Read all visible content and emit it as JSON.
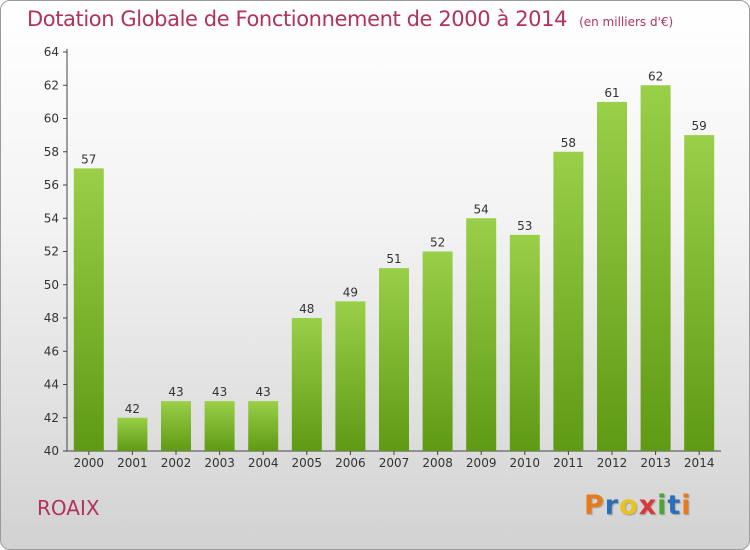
{
  "header": {
    "title": "Dotation Globale de Fonctionnement de 2000 à 2014",
    "unit": "(en milliers d'€)"
  },
  "footer": {
    "commune": "ROAIX",
    "brand": "Proxiti"
  },
  "brand_letters": [
    {
      "ch": "P",
      "color": "#e87a1e"
    },
    {
      "ch": "r",
      "color": "#2a6fb8"
    },
    {
      "ch": "o",
      "color": "#e8c21e"
    },
    {
      "ch": "x",
      "color": "#d63a3a"
    },
    {
      "ch": "i",
      "color": "#4aa532"
    },
    {
      "ch": "t",
      "color": "#2a6fb8"
    },
    {
      "ch": "i",
      "color": "#e87a1e"
    }
  ],
  "chart_data": {
    "type": "bar",
    "title": "Dotation Globale de Fonctionnement de 2000 à 2014",
    "subtitle": "(en milliers d'€)",
    "categories": [
      "2000",
      "2001",
      "2002",
      "2003",
      "2004",
      "2005",
      "2006",
      "2007",
      "2008",
      "2009",
      "2010",
      "2011",
      "2012",
      "2013",
      "2014"
    ],
    "values": [
      57,
      42,
      43,
      43,
      43,
      48,
      49,
      51,
      52,
      54,
      53,
      58,
      61,
      62,
      59
    ],
    "ylim": [
      40,
      64
    ],
    "yticks": [
      40,
      42,
      44,
      46,
      48,
      50,
      52,
      54,
      56,
      58,
      60,
      62,
      64
    ],
    "grid": false,
    "colors": {
      "bar_top": "#9acf48",
      "bar_bottom": "#5f9a14",
      "title": "#b3325a"
    }
  }
}
